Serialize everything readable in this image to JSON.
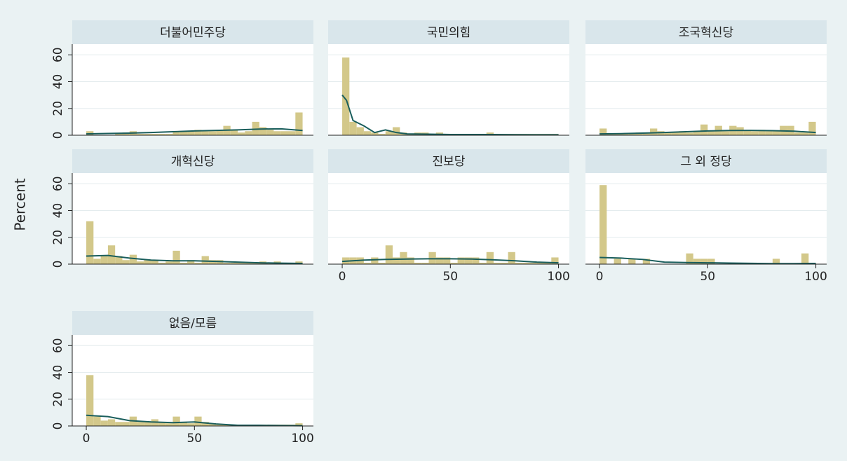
{
  "chart_data": [
    {
      "type": "histogram",
      "title": "더불어민주당",
      "color": "#d3c88a",
      "ylim": [
        0,
        68
      ],
      "yticks": [
        0,
        20,
        40,
        60
      ],
      "ytick_labels": true,
      "xlim": [
        -6.5,
        105
      ],
      "grid": true,
      "bins": [
        0,
        3.33,
        6.67,
        10,
        13.33,
        16.67,
        20,
        23.33,
        26.67,
        30,
        33.33,
        36.67,
        40,
        43.33,
        46.67,
        50,
        53.33,
        56.67,
        60,
        63.33,
        66.67,
        70,
        73.33,
        76.67,
        80,
        83.33,
        86.67,
        90,
        93.33,
        96.67,
        100
      ],
      "values": [
        3,
        0,
        0,
        0,
        1,
        2,
        3,
        1,
        1,
        1,
        1,
        1,
        3,
        3,
        3,
        4,
        3,
        3,
        4,
        7,
        4,
        2,
        3,
        10,
        6,
        4,
        3,
        3,
        3,
        17
      ],
      "line": {
        "color": "#1a5e5c",
        "x": [
          0,
          10,
          20,
          30,
          40,
          50,
          60,
          70,
          80,
          90,
          100
        ],
        "values": [
          1,
          1.3,
          1.6,
          2,
          2.6,
          3.2,
          3.6,
          4,
          4.6,
          4.8,
          3.5
        ]
      }
    },
    {
      "type": "histogram",
      "title": "국민의힘",
      "color": "#d3c88a",
      "ylim": [
        0,
        68
      ],
      "yticks": [
        0,
        20,
        40,
        60
      ],
      "ytick_labels": false,
      "xlim": [
        -6.5,
        105
      ],
      "grid": true,
      "bins": [
        0,
        3.33,
        6.67,
        10,
        13.33,
        16.67,
        20,
        23.33,
        26.67,
        30,
        33.33,
        36.67,
        40,
        43.33,
        46.67,
        50,
        53.33,
        56.67,
        60,
        63.33,
        66.67,
        70,
        73.33,
        76.67,
        80,
        83.33,
        86.67,
        90,
        93.33,
        96.67,
        100
      ],
      "values": [
        58,
        10,
        6,
        3,
        2,
        1,
        3,
        6,
        2,
        1,
        2,
        2,
        1,
        2,
        1,
        1,
        1,
        1,
        1,
        1,
        2,
        1,
        1,
        1,
        1,
        1,
        1,
        1,
        1,
        1
      ],
      "line": {
        "color": "#1a5e5c",
        "x": [
          0,
          2,
          5,
          10,
          15,
          20,
          25,
          30,
          40,
          50,
          60,
          70,
          80,
          90,
          100
        ],
        "values": [
          30,
          26,
          11,
          7,
          2,
          4,
          2,
          1,
          0.8,
          0.5,
          0.5,
          0.5,
          0.4,
          0.3,
          0.3
        ]
      }
    },
    {
      "type": "histogram",
      "title": "조국혁신당",
      "color": "#d3c88a",
      "ylim": [
        0,
        68
      ],
      "yticks": [
        0,
        20,
        40,
        60
      ],
      "ytick_labels": false,
      "xlim": [
        -6.5,
        105
      ],
      "grid": true,
      "bins": [
        0,
        3.33,
        6.67,
        10,
        13.33,
        16.67,
        20,
        23.33,
        26.67,
        30,
        33.33,
        36.67,
        40,
        43.33,
        46.67,
        50,
        53.33,
        56.67,
        60,
        63.33,
        66.67,
        70,
        73.33,
        76.67,
        80,
        83.33,
        86.67,
        90,
        93.33,
        96.67,
        100
      ],
      "values": [
        5,
        1,
        1,
        1,
        1,
        2,
        2,
        5,
        3,
        2,
        2,
        3,
        2,
        3,
        8,
        3,
        7,
        3,
        7,
        6,
        4,
        3,
        4,
        3,
        3,
        7,
        7,
        2,
        2,
        10
      ],
      "line": {
        "color": "#1a5e5c",
        "x": [
          0,
          10,
          20,
          30,
          40,
          50,
          60,
          70,
          80,
          90,
          100
        ],
        "values": [
          1,
          1.2,
          1.6,
          2,
          2.6,
          3.2,
          3.5,
          3.6,
          3.4,
          3,
          2
        ]
      }
    },
    {
      "type": "histogram",
      "title": "개혁신당",
      "ylabel": "Percent",
      "color": "#d3c88a",
      "ylim": [
        0,
        68
      ],
      "yticks": [
        0,
        20,
        40,
        60
      ],
      "ytick_labels": true,
      "xlim": [
        -6.5,
        105
      ],
      "grid": true,
      "bins": [
        0,
        3.33,
        6.67,
        10,
        13.33,
        16.67,
        20,
        23.33,
        26.67,
        30,
        33.33,
        36.67,
        40,
        43.33,
        46.67,
        50,
        53.33,
        56.67,
        60,
        63.33,
        66.67,
        70,
        73.33,
        76.67,
        80,
        83.33,
        86.67,
        90,
        93.33,
        96.67,
        100
      ],
      "values": [
        32,
        4,
        6,
        14,
        6,
        3,
        7,
        2,
        3,
        3,
        1,
        2,
        10,
        1,
        3,
        1,
        6,
        3,
        3,
        1,
        1,
        1,
        1,
        1,
        2,
        1,
        2,
        1,
        1,
        2
      ],
      "line": {
        "color": "#1a5e5c",
        "x": [
          0,
          10,
          20,
          30,
          40,
          50,
          60,
          70,
          80,
          90,
          100
        ],
        "values": [
          6,
          6.5,
          4.5,
          3,
          2.5,
          2.5,
          2,
          1.5,
          1,
          0.7,
          0.5
        ]
      }
    },
    {
      "type": "histogram",
      "title": "진보당",
      "color": "#d3c88a",
      "ylim": [
        0,
        68
      ],
      "yticks": [
        0,
        20,
        40,
        60
      ],
      "ytick_labels": false,
      "xlim": [
        -6.5,
        105
      ],
      "xticks": [
        0,
        50,
        100
      ],
      "grid": true,
      "bins": [
        0,
        3.33,
        6.67,
        10,
        13.33,
        16.67,
        20,
        23.33,
        26.67,
        30,
        33.33,
        36.67,
        40,
        43.33,
        46.67,
        50,
        53.33,
        56.67,
        60,
        63.33,
        66.67,
        70,
        73.33,
        76.67,
        80,
        83.33,
        86.67,
        90,
        93.33,
        96.67,
        100
      ],
      "values": [
        5,
        5,
        5,
        1,
        5,
        1,
        14,
        5,
        9,
        5,
        1,
        1,
        9,
        5,
        5,
        1,
        5,
        5,
        5,
        1,
        9,
        1,
        1,
        9,
        1,
        1,
        1,
        1,
        1,
        5
      ],
      "line": {
        "color": "#1a5e5c",
        "x": [
          0,
          10,
          20,
          30,
          40,
          50,
          60,
          70,
          80,
          90,
          100
        ],
        "values": [
          2,
          3,
          3.5,
          3.8,
          4,
          4,
          3.8,
          3.2,
          2.5,
          1.5,
          1
        ]
      }
    },
    {
      "type": "histogram",
      "title": "그 외 정당",
      "color": "#d3c88a",
      "ylim": [
        0,
        68
      ],
      "yticks": [
        0,
        20,
        40,
        60
      ],
      "ytick_labels": false,
      "xlim": [
        -6.5,
        105
      ],
      "xticks": [
        0,
        50,
        100
      ],
      "grid": true,
      "bins": [
        0,
        3.33,
        6.67,
        10,
        13.33,
        16.67,
        20,
        23.33,
        26.67,
        30,
        33.33,
        36.67,
        40,
        43.33,
        46.67,
        50,
        53.33,
        56.67,
        60,
        63.33,
        66.67,
        70,
        73.33,
        76.67,
        80,
        83.33,
        86.67,
        90,
        93.33,
        96.67,
        100
      ],
      "values": [
        59,
        0,
        4,
        0,
        4,
        0,
        4,
        0,
        0,
        0,
        0,
        0,
        8,
        4,
        4,
        4,
        0,
        0,
        0,
        0,
        0,
        0,
        0,
        0,
        4,
        0,
        0,
        0,
        8,
        0
      ],
      "line": {
        "color": "#1a5e5c",
        "x": [
          0,
          10,
          20,
          30,
          40,
          50,
          60,
          70,
          80,
          90,
          100
        ],
        "values": [
          5,
          4.5,
          3.5,
          1.5,
          1.2,
          1,
          0.8,
          0.6,
          0.4,
          0.4,
          0.5
        ]
      }
    },
    {
      "type": "histogram",
      "title": "없음/모름",
      "color": "#d3c88a",
      "ylim": [
        0,
        68
      ],
      "yticks": [
        0,
        20,
        40,
        60
      ],
      "ytick_labels": true,
      "xlim": [
        -6.5,
        105
      ],
      "xticks": [
        0,
        50,
        100
      ],
      "grid": true,
      "bins": [
        0,
        3.33,
        6.67,
        10,
        13.33,
        16.67,
        20,
        23.33,
        26.67,
        30,
        33.33,
        36.67,
        40,
        43.33,
        46.67,
        50,
        53.33,
        56.67,
        60,
        63.33,
        66.67,
        70,
        73.33,
        76.67,
        80,
        83.33,
        86.67,
        90,
        93.33,
        96.67,
        100
      ],
      "values": [
        38,
        7,
        4,
        5,
        3,
        3,
        7,
        3,
        3,
        5,
        3,
        2,
        7,
        3,
        2,
        7,
        3,
        2,
        1,
        1,
        1,
        1,
        1,
        1,
        1,
        1,
        1,
        1,
        1,
        2
      ],
      "line": {
        "color": "#1a5e5c",
        "x": [
          0,
          10,
          20,
          30,
          40,
          50,
          60,
          70,
          80,
          90,
          100
        ],
        "values": [
          8,
          7,
          4,
          3,
          2.5,
          3,
          1.5,
          0.5,
          0.5,
          0.3,
          0.2
        ]
      }
    }
  ]
}
